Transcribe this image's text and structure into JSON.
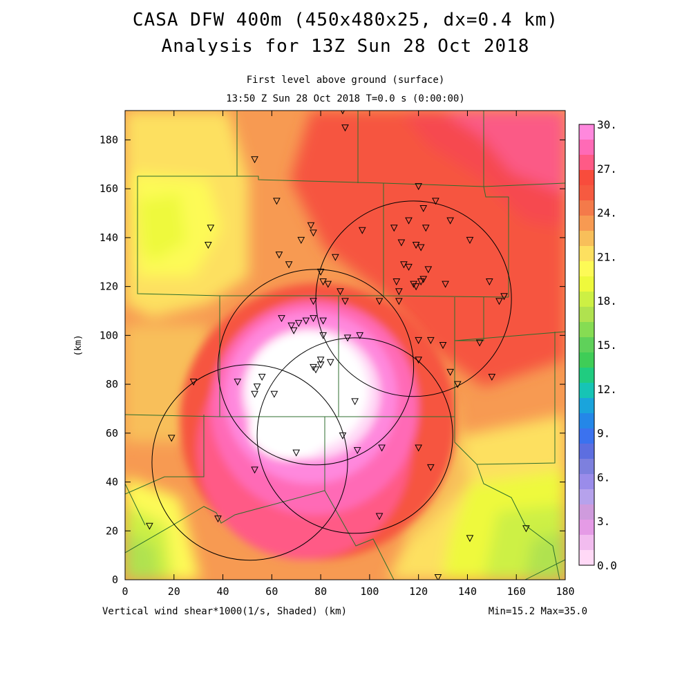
{
  "title": {
    "line1": "CASA DFW 400m (450x480x25, dx=0.4 km)",
    "line2": "Analysis for 13Z Sun 28 Oct 2018"
  },
  "subtitle": {
    "line1": "First level above ground (surface)",
    "line2": "13:50 Z Sun 28 Oct 2018    T=0.0 s (0:00:00)"
  },
  "footer": {
    "left": "Vertical wind shear*1000(1/s, Shaded)  (km)",
    "right": "Min=15.2 Max=35.0"
  },
  "axes": {
    "ylabel": "(km)",
    "x_ticks": [
      "0",
      "20",
      "40",
      "60",
      "80",
      "100",
      "120",
      "140",
      "160",
      "180"
    ],
    "y_ticks": [
      "0",
      "20",
      "40",
      "60",
      "80",
      "100",
      "120",
      "140",
      "160",
      "180"
    ]
  },
  "colorbar": {
    "labels": [
      "30.",
      "27.",
      "24.",
      "21.",
      "18.",
      "15.",
      "12.",
      "9.",
      "6.",
      "3.",
      "0.0"
    ],
    "colors": [
      "#ff88dd",
      "#ff6ab6",
      "#ff5a86",
      "#f84c3c",
      "#f65a40",
      "#f47a4a",
      "#f79a52",
      "#f8bf5a",
      "#fde060",
      "#fdfa56",
      "#eef93c",
      "#cdf044",
      "#b0e24f",
      "#86dc53",
      "#5fd15a",
      "#3fcd57",
      "#20cc80",
      "#16c4b5",
      "#1aa4dc",
      "#2487e8",
      "#3b72ef",
      "#5d6ee0",
      "#7d80de",
      "#9a8cea",
      "#b6a2ec",
      "#cf9bdd",
      "#e59be6",
      "#f2bcef",
      "#ffd9f6"
    ]
  },
  "stations": [
    [
      89,
      192
    ],
    [
      90,
      185
    ],
    [
      53,
      172
    ],
    [
      62,
      155
    ],
    [
      35,
      144
    ],
    [
      34,
      137
    ],
    [
      120,
      161
    ],
    [
      127,
      155
    ],
    [
      122,
      152
    ],
    [
      133,
      147
    ],
    [
      76,
      145
    ],
    [
      77,
      142
    ],
    [
      97,
      143
    ],
    [
      110,
      144
    ],
    [
      116,
      147
    ],
    [
      123,
      144
    ],
    [
      141,
      139
    ],
    [
      63,
      133
    ],
    [
      72,
      139
    ],
    [
      119,
      137
    ],
    [
      121,
      136
    ],
    [
      113,
      138
    ],
    [
      86,
      132
    ],
    [
      67,
      129
    ],
    [
      80,
      126
    ],
    [
      114,
      129
    ],
    [
      116,
      128
    ],
    [
      124,
      127
    ],
    [
      81,
      122
    ],
    [
      83,
      121
    ],
    [
      88,
      118
    ],
    [
      111,
      122
    ],
    [
      112,
      118
    ],
    [
      119,
      120
    ],
    [
      121,
      122
    ],
    [
      122,
      123
    ],
    [
      118,
      121
    ],
    [
      131,
      121
    ],
    [
      149,
      122
    ],
    [
      155,
      116
    ],
    [
      153,
      114
    ],
    [
      90,
      114
    ],
    [
      77,
      114
    ],
    [
      104,
      114
    ],
    [
      112,
      114
    ],
    [
      64,
      107
    ],
    [
      68,
      104
    ],
    [
      71,
      105
    ],
    [
      69,
      102
    ],
    [
      74,
      106
    ],
    [
      77,
      107
    ],
    [
      81,
      106
    ],
    [
      81,
      100
    ],
    [
      91,
      99
    ],
    [
      96,
      100
    ],
    [
      120,
      98
    ],
    [
      125,
      98
    ],
    [
      130,
      96
    ],
    [
      145,
      97
    ],
    [
      136,
      80
    ],
    [
      133,
      85
    ],
    [
      150,
      83
    ],
    [
      120,
      90
    ],
    [
      80,
      90
    ],
    [
      84,
      89
    ],
    [
      77,
      87
    ],
    [
      78,
      86
    ],
    [
      80,
      88
    ],
    [
      56,
      83
    ],
    [
      54,
      79
    ],
    [
      53,
      76
    ],
    [
      61,
      76
    ],
    [
      46,
      81
    ],
    [
      28,
      81
    ],
    [
      94,
      73
    ],
    [
      89,
      59
    ],
    [
      95,
      53
    ],
    [
      105,
      54
    ],
    [
      120,
      54
    ],
    [
      125,
      46
    ],
    [
      70,
      52
    ],
    [
      53,
      45
    ],
    [
      19,
      58
    ],
    [
      38,
      25
    ],
    [
      10,
      22
    ],
    [
      104,
      26
    ],
    [
      141,
      17
    ],
    [
      164,
      21
    ],
    [
      128,
      1
    ]
  ],
  "radar_circles": [
    {
      "cx": 94,
      "cy": 59,
      "r": 40
    },
    {
      "cx": 51,
      "cy": 48,
      "r": 40
    },
    {
      "cx": 118,
      "cy": 115,
      "r": 40
    },
    {
      "cx": 78,
      "cy": 87,
      "r": 40
    }
  ]
}
